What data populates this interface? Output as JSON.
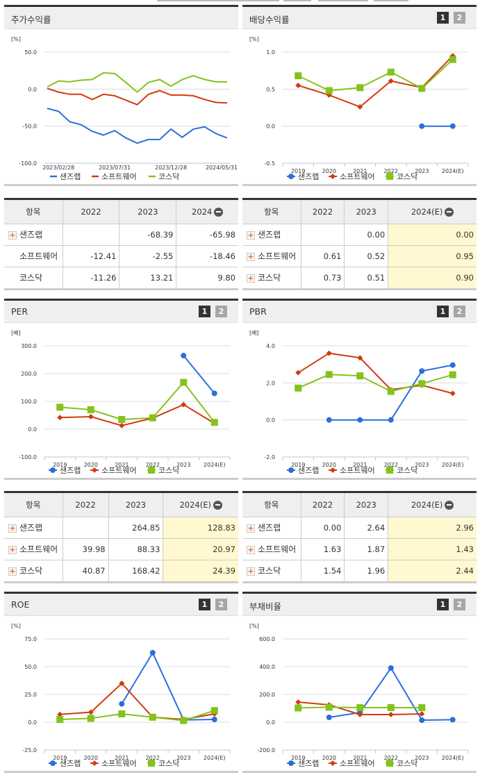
{
  "colors": {
    "sanjeulab": "#2a6fdb",
    "software": "#d23a0c",
    "kosdaq": "#84c21d",
    "highlight": "#fff8d0",
    "header_bg": "#efefef"
  },
  "legend": [
    "샌즈랩",
    "소프트웨어",
    "코스닥"
  ],
  "pager": {
    "p1": "1",
    "p2": "2"
  },
  "panels": {
    "stock_return": {
      "title": "주가수익률",
      "unit": "[%]",
      "yticks": [
        "50.0",
        "0.0",
        "-50.0",
        "-100.0"
      ],
      "xticks": [
        "2023/02/28",
        "2023/07/31",
        "2023/12/28",
        "2024/05/31"
      ]
    },
    "dividend": {
      "title": "배당수익률",
      "unit": "[%]",
      "yticks": [
        "1.0",
        "0.5",
        "0.0",
        "-0.5"
      ],
      "xticks": [
        "2019",
        "2020",
        "2021",
        "2022",
        "2023",
        "2024(E)"
      ]
    },
    "per": {
      "title": "PER",
      "unit": "[배]",
      "yticks": [
        "300.0",
        "200.0",
        "100.0",
        "0.0",
        "-100.0"
      ],
      "xticks": [
        "2019",
        "2020",
        "2021",
        "2022",
        "2023",
        "2024(E)"
      ]
    },
    "pbr": {
      "title": "PBR",
      "unit": "[배]",
      "yticks": [
        "4.0",
        "2.0",
        "0.0",
        "-2.0"
      ],
      "xticks": [
        "2019",
        "2020",
        "2021",
        "2022",
        "2023",
        "2024(E)"
      ]
    },
    "roe": {
      "title": "ROE",
      "unit": "[%]",
      "yticks": [
        "75.0",
        "50.0",
        "25.0",
        "0.0",
        "-25.0"
      ],
      "xticks": [
        "2019",
        "2020",
        "2021",
        "2022",
        "2023",
        "2024(E)"
      ]
    },
    "debt": {
      "title": "부채비율",
      "unit": "[%]",
      "yticks": [
        "600.0",
        "400.0",
        "200.0",
        "0.0",
        "-200.0"
      ],
      "xticks": [
        "2019",
        "2020",
        "2021",
        "2022",
        "2023",
        "2024(E)"
      ]
    }
  },
  "tables": {
    "stock_return": {
      "headers": [
        "항목",
        "2022",
        "2023",
        "2024"
      ],
      "rows": [
        {
          "label": "샌즈랩",
          "expand": true,
          "values": [
            "",
            "-68.39",
            "-65.98"
          ]
        },
        {
          "label": "소프트웨어",
          "expand": false,
          "values": [
            "-12.41",
            "-2.55",
            "-18.46"
          ]
        },
        {
          "label": "코스닥",
          "expand": false,
          "values": [
            "-11.26",
            "13.21",
            "9.80"
          ]
        }
      ]
    },
    "dividend": {
      "headers": [
        "항목",
        "2022",
        "2023",
        "2024(E)"
      ],
      "rows": [
        {
          "label": "샌즈랩",
          "expand": true,
          "values": [
            "",
            "0.00",
            "0.00"
          ]
        },
        {
          "label": "소프트웨어",
          "expand": true,
          "values": [
            "0.61",
            "0.52",
            "0.95"
          ]
        },
        {
          "label": "코스닥",
          "expand": true,
          "values": [
            "0.73",
            "0.51",
            "0.90"
          ]
        }
      ]
    },
    "per": {
      "headers": [
        "항목",
        "2022",
        "2023",
        "2024(E)"
      ],
      "rows": [
        {
          "label": "샌즈랩",
          "expand": true,
          "values": [
            "",
            "264.85",
            "128.83"
          ]
        },
        {
          "label": "소프트웨어",
          "expand": true,
          "values": [
            "39.98",
            "88.33",
            "20.97"
          ]
        },
        {
          "label": "코스닥",
          "expand": true,
          "values": [
            "40.87",
            "168.42",
            "24.39"
          ]
        }
      ]
    },
    "pbr": {
      "headers": [
        "항목",
        "2022",
        "2023",
        "2024(E)"
      ],
      "rows": [
        {
          "label": "샌즈랩",
          "expand": true,
          "values": [
            "0.00",
            "2.64",
            "2.96"
          ]
        },
        {
          "label": "소프트웨어",
          "expand": true,
          "values": [
            "1.63",
            "1.87",
            "1.43"
          ]
        },
        {
          "label": "코스닥",
          "expand": true,
          "values": [
            "1.54",
            "1.96",
            "2.44"
          ]
        }
      ]
    }
  },
  "chart_data": [
    {
      "type": "line",
      "title": "주가수익률",
      "ylabel": "[%]",
      "ylim": [
        -100,
        50
      ],
      "xticks": [
        "2023/02/28",
        "2023/07/31",
        "2023/12/28",
        "2024/05/31"
      ],
      "x": [
        "2023/02",
        "2023/03",
        "2023/04",
        "2023/05",
        "2023/06",
        "2023/07",
        "2023/08",
        "2023/09",
        "2023/10",
        "2023/11",
        "2023/12",
        "2024/01",
        "2024/02",
        "2024/03",
        "2024/04",
        "2024/05",
        "2024/06"
      ],
      "series": [
        {
          "name": "샌즈랩",
          "values": [
            -26,
            -30,
            -44,
            -48,
            -57,
            -62,
            -56,
            -66,
            -73,
            -68,
            -68,
            -54,
            -65,
            -54,
            -51,
            -60,
            -66
          ]
        },
        {
          "name": "소프트웨어",
          "values": [
            1,
            -4,
            -7,
            -7,
            -14,
            -7,
            -9,
            -15,
            -21,
            -7,
            -2,
            -8,
            -8,
            -9,
            -14,
            -18,
            -18.5
          ]
        },
        {
          "name": "코스닥",
          "values": [
            3,
            11,
            10,
            12,
            13,
            22,
            21,
            9,
            -4,
            9,
            13,
            4,
            13,
            18,
            13,
            9.8,
            9.8
          ]
        }
      ],
      "legend_position": "bottom",
      "grid": true
    },
    {
      "type": "line",
      "title": "배당수익률",
      "ylabel": "[%]",
      "ylim": [
        -0.5,
        1.0
      ],
      "categories": [
        "2019",
        "2020",
        "2021",
        "2022",
        "2023",
        "2024(E)"
      ],
      "series": [
        {
          "name": "샌즈랩",
          "values": [
            null,
            null,
            null,
            null,
            0.0,
            0.0
          ]
        },
        {
          "name": "소프트웨어",
          "values": [
            0.55,
            0.42,
            0.26,
            0.61,
            0.52,
            0.95
          ]
        },
        {
          "name": "코스닥",
          "values": [
            0.68,
            0.48,
            0.52,
            0.73,
            0.51,
            0.9
          ]
        }
      ],
      "legend_position": "bottom",
      "grid": true
    },
    {
      "type": "line",
      "title": "PER",
      "ylabel": "[배]",
      "ylim": [
        -100,
        300
      ],
      "categories": [
        "2019",
        "2020",
        "2021",
        "2022",
        "2023",
        "2024(E)"
      ],
      "series": [
        {
          "name": "샌즈랩",
          "values": [
            null,
            null,
            null,
            null,
            264.85,
            128.83
          ]
        },
        {
          "name": "소프트웨어",
          "values": [
            42,
            45,
            13,
            39.98,
            88.33,
            20.97
          ]
        },
        {
          "name": "코스닥",
          "values": [
            79,
            70,
            35,
            40.87,
            168.42,
            24.39
          ]
        }
      ],
      "legend_position": "bottom",
      "grid": true
    },
    {
      "type": "line",
      "title": "PBR",
      "ylabel": "[배]",
      "ylim": [
        -2,
        4
      ],
      "categories": [
        "2019",
        "2020",
        "2021",
        "2022",
        "2023",
        "2024(E)"
      ],
      "series": [
        {
          "name": "샌즈랩",
          "values": [
            null,
            0.0,
            0.0,
            0.0,
            2.64,
            2.96
          ]
        },
        {
          "name": "소프트웨어",
          "values": [
            2.55,
            3.6,
            3.35,
            1.63,
            1.87,
            1.43
          ]
        },
        {
          "name": "코스닥",
          "values": [
            1.72,
            2.45,
            2.38,
            1.54,
            1.96,
            2.44
          ]
        }
      ],
      "legend_position": "bottom",
      "grid": true
    },
    {
      "type": "line",
      "title": "ROE",
      "ylabel": "[%]",
      "ylim": [
        -25,
        75
      ],
      "categories": [
        "2019",
        "2020",
        "2021",
        "2022",
        "2023",
        "2024(E)"
      ],
      "series": [
        {
          "name": "샌즈랩",
          "values": [
            null,
            null,
            16.5,
            62.5,
            2.0,
            2.5
          ]
        },
        {
          "name": "소프트웨어",
          "values": [
            7,
            9,
            35,
            4.5,
            2.5,
            7.5
          ]
        },
        {
          "name": "코스닥",
          "values": [
            2.5,
            3.5,
            7.5,
            4.5,
            1.5,
            10.5
          ]
        }
      ],
      "legend_position": "bottom",
      "grid": true
    },
    {
      "type": "line",
      "title": "부채비율",
      "ylabel": "[%]",
      "ylim": [
        -200,
        600
      ],
      "categories": [
        "2019",
        "2020",
        "2021",
        "2022",
        "2023",
        "2024(E)"
      ],
      "series": [
        {
          "name": "샌즈랩",
          "values": [
            null,
            35,
            70,
            390,
            15,
            18
          ]
        },
        {
          "name": "소프트웨어",
          "values": [
            145,
            125,
            55,
            55,
            60,
            null
          ]
        },
        {
          "name": "코스닥",
          "values": [
            103,
            108,
            105,
            105,
            105,
            null
          ]
        }
      ],
      "legend_position": "bottom",
      "grid": true
    }
  ]
}
